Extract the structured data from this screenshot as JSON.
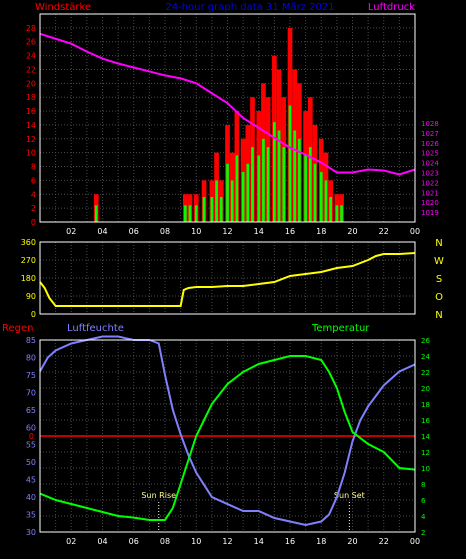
{
  "header": {
    "left_title": "Windstärke",
    "center_title": "24-hour graph data  31 März 2021",
    "right_title": "Luftdruck"
  },
  "lower_header": {
    "rain": "Regen",
    "humidity": "Luftfeuchte",
    "temperature": "Temperatur"
  },
  "x_ticks": [
    "02",
    "04",
    "06",
    "08",
    "10",
    "12",
    "14",
    "16",
    "18",
    "20",
    "22",
    "00"
  ],
  "colors": {
    "wind_gust": "#ff0000",
    "wind_speed": "#00ff00",
    "pressure": "#ff00ff",
    "direction": "#ffff00",
    "humidity": "#8080ff",
    "temperature": "#00ff00",
    "rain": "#ff0000",
    "grid": "#4a4a4a",
    "axis_text_red": "#ff0000",
    "axis_text_magenta": "#ff00ff",
    "axis_text_yellow": "#ffff00",
    "axis_text_blue": "#8080ff",
    "axis_text_green": "#00ff00"
  },
  "chart_data": [
    {
      "type": "bar",
      "name": "wind",
      "x_range_hours": [
        0,
        24
      ],
      "ylim_left": [
        0,
        30
      ],
      "left_ticks": [
        0,
        2,
        4,
        6,
        8,
        10,
        12,
        14,
        16,
        18,
        20,
        22,
        24,
        26,
        28
      ],
      "ylim_right": [
        1018,
        1039
      ],
      "right_ticks": [
        1019,
        1020,
        1021,
        1022,
        1023,
        1024,
        1025,
        1026,
        1027,
        1028
      ],
      "series": [
        {
          "name": "Windstärke",
          "values": [
            [
              3.6,
              4
            ],
            [
              9.3,
              4
            ],
            [
              9.6,
              4
            ],
            [
              10,
              4
            ],
            [
              10.5,
              6
            ],
            [
              11,
              6
            ],
            [
              11.3,
              10
            ],
            [
              11.6,
              6
            ],
            [
              12,
              14
            ],
            [
              12.3,
              10
            ],
            [
              12.6,
              16
            ],
            [
              13,
              12
            ],
            [
              13.3,
              14
            ],
            [
              13.6,
              18
            ],
            [
              14,
              16
            ],
            [
              14.3,
              20
            ],
            [
              14.6,
              18
            ],
            [
              15,
              24
            ],
            [
              15.3,
              22
            ],
            [
              15.6,
              18
            ],
            [
              16,
              28
            ],
            [
              16.3,
              22
            ],
            [
              16.6,
              20
            ],
            [
              17,
              16
            ],
            [
              17.3,
              18
            ],
            [
              17.6,
              14
            ],
            [
              18,
              12
            ],
            [
              18.3,
              10
            ],
            [
              18.6,
              6
            ],
            [
              19,
              4
            ],
            [
              19.3,
              4
            ]
          ]
        },
        {
          "name": "Luftdruck",
          "values": [
            [
              0,
              1037
            ],
            [
              1,
              1036.5
            ],
            [
              2,
              1036
            ],
            [
              3,
              1035.2
            ],
            [
              4,
              1034.5
            ],
            [
              5,
              1034
            ],
            [
              6,
              1033.6
            ],
            [
              7,
              1033.2
            ],
            [
              8,
              1032.8
            ],
            [
              9,
              1032.5
            ],
            [
              10,
              1032
            ],
            [
              11,
              1031
            ],
            [
              12,
              1030
            ],
            [
              13,
              1028.5
            ],
            [
              14,
              1027.5
            ],
            [
              15,
              1026.5
            ],
            [
              16,
              1025.5
            ],
            [
              17,
              1024.8
            ],
            [
              18,
              1024
            ],
            [
              19,
              1023
            ],
            [
              20,
              1023
            ],
            [
              21,
              1023.3
            ],
            [
              22,
              1023.2
            ],
            [
              23,
              1022.8
            ],
            [
              24,
              1023.3
            ]
          ]
        }
      ]
    },
    {
      "type": "line",
      "name": "direction",
      "ylim": [
        0,
        360
      ],
      "left_ticks": [
        0,
        90,
        180,
        270,
        360
      ],
      "right_labels": [
        "N",
        "W",
        "S",
        "O",
        "N"
      ],
      "series": [
        {
          "name": "Richtung",
          "values": [
            [
              0,
              160
            ],
            [
              0.3,
              130
            ],
            [
              0.6,
              80
            ],
            [
              1,
              40
            ],
            [
              2,
              40
            ],
            [
              3,
              40
            ],
            [
              4,
              40
            ],
            [
              5,
              40
            ],
            [
              6,
              40
            ],
            [
              7,
              40
            ],
            [
              8,
              40
            ],
            [
              9,
              40
            ],
            [
              9.2,
              120
            ],
            [
              9.5,
              130
            ],
            [
              10,
              135
            ],
            [
              11,
              135
            ],
            [
              12,
              140
            ],
            [
              13,
              140
            ],
            [
              14,
              150
            ],
            [
              15,
              160
            ],
            [
              16,
              190
            ],
            [
              17,
              200
            ],
            [
              18,
              210
            ],
            [
              19,
              230
            ],
            [
              20,
              240
            ],
            [
              21,
              270
            ],
            [
              21.5,
              290
            ],
            [
              22,
              300
            ],
            [
              23,
              300
            ],
            [
              24,
              305
            ]
          ]
        }
      ]
    },
    {
      "type": "line",
      "name": "humidity_temperature",
      "ylim_left": [
        30,
        85
      ],
      "left_ticks": [
        30,
        35,
        40,
        45,
        50,
        55,
        60,
        65,
        70,
        75,
        80,
        85
      ],
      "ylim_right": [
        2,
        26
      ],
      "right_ticks": [
        2,
        4,
        6,
        8,
        10,
        12,
        14,
        16,
        18,
        20,
        22,
        24,
        26
      ],
      "rain_label": "0",
      "annotations": [
        "Sun Rise",
        "Sun Set"
      ],
      "series": [
        {
          "name": "Luftfeuchte",
          "values": [
            [
              0,
              76
            ],
            [
              0.5,
              80
            ],
            [
              1,
              82
            ],
            [
              2,
              84
            ],
            [
              3,
              85
            ],
            [
              4,
              86
            ],
            [
              5,
              86
            ],
            [
              6,
              85
            ],
            [
              7,
              85
            ],
            [
              7.6,
              84
            ],
            [
              8,
              75
            ],
            [
              8.5,
              65
            ],
            [
              9,
              58
            ],
            [
              9.5,
              52
            ],
            [
              10,
              47
            ],
            [
              11,
              40
            ],
            [
              12,
              38
            ],
            [
              13,
              36
            ],
            [
              14,
              36
            ],
            [
              15,
              34
            ],
            [
              16,
              33
            ],
            [
              17,
              32
            ],
            [
              18,
              33
            ],
            [
              18.5,
              35
            ],
            [
              19,
              40
            ],
            [
              19.5,
              47
            ],
            [
              20,
              56
            ],
            [
              20.5,
              62
            ],
            [
              21,
              66
            ],
            [
              22,
              72
            ],
            [
              23,
              76
            ],
            [
              24,
              78
            ]
          ]
        },
        {
          "name": "Temperatur",
          "values": [
            [
              0,
              6.8
            ],
            [
              1,
              6
            ],
            [
              2,
              5.5
            ],
            [
              3,
              5
            ],
            [
              4,
              4.5
            ],
            [
              5,
              4
            ],
            [
              6,
              3.8
            ],
            [
              7,
              3.5
            ],
            [
              8,
              3.5
            ],
            [
              8.5,
              5
            ],
            [
              9,
              8
            ],
            [
              9.5,
              11
            ],
            [
              10,
              14
            ],
            [
              11,
              18
            ],
            [
              12,
              20.5
            ],
            [
              13,
              22
            ],
            [
              14,
              23
            ],
            [
              15,
              23.5
            ],
            [
              16,
              24
            ],
            [
              17,
              24
            ],
            [
              18,
              23.5
            ],
            [
              18.5,
              22
            ],
            [
              19,
              20
            ],
            [
              19.5,
              17
            ],
            [
              20,
              14.5
            ],
            [
              21,
              13
            ],
            [
              22,
              12
            ],
            [
              23,
              10
            ],
            [
              24,
              9.8
            ]
          ]
        }
      ]
    }
  ]
}
